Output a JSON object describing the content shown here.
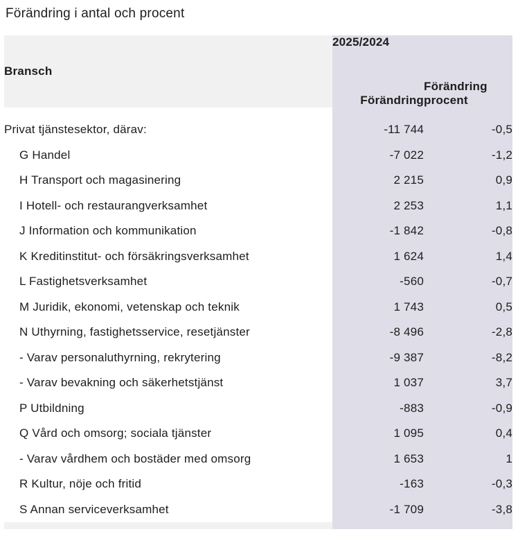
{
  "title": "Förändring i antal och procent",
  "colors": {
    "header_gray": "#f1f1f1",
    "lavender": "#dfdde8",
    "text": "#1d1d1d",
    "page_background": "#ffffff"
  },
  "table": {
    "col_bransch": "Bransch",
    "group_header": "2025/2024",
    "col_change": "Förändring",
    "col_percent": "Förändring procent"
  },
  "rows": [
    {
      "name": "Privat tjänstesektor, därav:",
      "change": "-11 744",
      "percent": "-0,5",
      "indent": false
    },
    {
      "name": "G Handel",
      "change": "-7 022",
      "percent": "-1,2",
      "indent": true
    },
    {
      "name": "H Transport och magasinering",
      "change": "2 215",
      "percent": "0,9",
      "indent": true
    },
    {
      "name": "I Hotell- och restaurangverksamhet",
      "change": "2 253",
      "percent": "1,1",
      "indent": true
    },
    {
      "name": "J Information och kommunikation",
      "change": "-1 842",
      "percent": "-0,8",
      "indent": true
    },
    {
      "name": "K Kreditinstitut- och försäkringsverksamhet",
      "change": "1 624",
      "percent": "1,4",
      "indent": true
    },
    {
      "name": "L Fastighetsverksamhet",
      "change": "-560",
      "percent": "-0,7",
      "indent": true
    },
    {
      "name": "M Juridik, ekonomi, vetenskap och teknik",
      "change": "1 743",
      "percent": "0,5",
      "indent": true
    },
    {
      "name": "N Uthyrning, fastighetsservice, resetjänster",
      "change": "-8 496",
      "percent": "-2,8",
      "indent": true
    },
    {
      "name": "- Varav personaluthyrning, rekrytering",
      "change": "-9 387",
      "percent": "-8,2",
      "indent": true
    },
    {
      "name": "- Varav bevakning och säkerhetstjänst",
      "change": "1 037",
      "percent": "3,7",
      "indent": true
    },
    {
      "name": "P Utbildning",
      "change": "-883",
      "percent": "-0,9",
      "indent": true
    },
    {
      "name": "Q Vård och omsorg; sociala tjänster",
      "change": "1 095",
      "percent": "0,4",
      "indent": true
    },
    {
      "name": "- Varav vårdhem och bostäder med omsorg",
      "change": "1 653",
      "percent": "1",
      "indent": true
    },
    {
      "name": "R Kultur, nöje och fritid",
      "change": "-163",
      "percent": "-0,3",
      "indent": true
    },
    {
      "name": "S Annan serviceverksamhet",
      "change": "-1 709",
      "percent": "-3,8",
      "indent": true
    }
  ]
}
